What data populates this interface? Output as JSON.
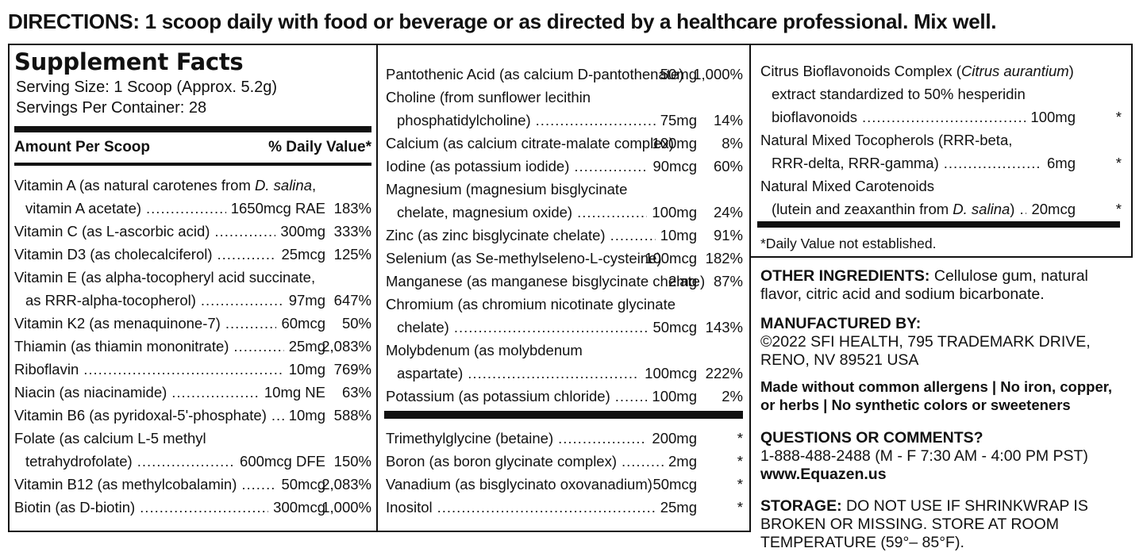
{
  "directions": "DIRECTIONS: 1 scoop daily with food or beverage or as directed by a healthcare professional. Mix well.",
  "facts": {
    "title": "Supplement Facts",
    "serving_size": "Serving Size: 1 Scoop (Approx. 5.2g)",
    "servings_per_container": "Servings Per Container: 28",
    "amount_header": "Amount Per Scoop",
    "dv_header": "% Daily Value*"
  },
  "col1": [
    {
      "name": "Vitamin A (as natural carotenes from D. salina,",
      "amt": "",
      "dv": ""
    },
    {
      "name": "  vitamin A acetate)",
      "amt": "1650mcg RAE",
      "dv": "183%"
    },
    {
      "name": "Vitamin C (as L-ascorbic acid)",
      "amt": "300mg",
      "dv": "333%"
    },
    {
      "name": "Vitamin D3 (as cholecalciferol)",
      "amt": "25mcg",
      "dv": "125%"
    },
    {
      "name": "Vitamin E (as alpha-tocopheryl acid succinate,",
      "amt": "",
      "dv": ""
    },
    {
      "name": "  as RRR-alpha-tocopherol)",
      "amt": "97mg",
      "dv": "647%"
    },
    {
      "name": "Vitamin K2 (as menaquinone-7)",
      "amt": "60mcg",
      "dv": "50%"
    },
    {
      "name": "Thiamin (as thiamin mononitrate)",
      "amt": "25mg",
      "dv": "2,083%"
    },
    {
      "name": "Riboflavin",
      "amt": "10mg",
      "dv": "769%"
    },
    {
      "name": "Niacin (as niacinamide)",
      "amt": "10mg NE",
      "dv": "63%"
    },
    {
      "name": "Vitamin B6 (as pyridoxal-5'-phosphate)",
      "amt": "10mg",
      "dv": "588%"
    },
    {
      "name": "Folate (as calcium L-5 methyl",
      "amt": "",
      "dv": ""
    },
    {
      "name": "  tetrahydrofolate)",
      "amt": "600mcg DFE",
      "dv": "150%"
    },
    {
      "name": "Vitamin B12 (as methylcobalamin)",
      "amt": "50mcg",
      "dv": "2,083%"
    },
    {
      "name": "Biotin (as D-biotin)",
      "amt": "300mcg",
      "dv": "1,000%"
    }
  ],
  "col2": [
    {
      "name": "Pantothenic Acid (as calcium D-pantothenate)",
      "amt": "50mg",
      "dv": "1,000%"
    },
    {
      "name": "Choline (from sunflower lecithin",
      "amt": "",
      "dv": ""
    },
    {
      "name": "  phosphatidylcholine)",
      "amt": "75mg",
      "dv": "14%"
    },
    {
      "name": "Calcium (as calcium citrate-malate complex)",
      "amt": "100mg",
      "dv": "8%"
    },
    {
      "name": "Iodine (as potassium iodide)",
      "amt": "90mcg",
      "dv": "60%"
    },
    {
      "name": "Magnesium (magnesium bisglycinate",
      "amt": "",
      "dv": ""
    },
    {
      "name": "  chelate, magnesium oxide)",
      "amt": "100mg",
      "dv": "24%"
    },
    {
      "name": "Zinc (as zinc bisglycinate chelate)",
      "amt": "10mg",
      "dv": "91%"
    },
    {
      "name": "Selenium (as Se-methylseleno-L-cysteine)",
      "amt": "100mcg",
      "dv": "182%"
    },
    {
      "name": "Manganese (as manganese bisglycinate chelate)",
      "amt": "2mg",
      "dv": "87%"
    },
    {
      "name": "Chromium (as chromium nicotinate glycinate",
      "amt": "",
      "dv": ""
    },
    {
      "name": "  chelate)",
      "amt": "50mcg",
      "dv": "143%"
    },
    {
      "name": "Molybdenum (as molybdenum",
      "amt": "",
      "dv": ""
    },
    {
      "name": "  aspartate)",
      "amt": "100mcg",
      "dv": "222%"
    },
    {
      "name": "Potassium (as potassium chloride)",
      "amt": "100mg",
      "dv": "2%"
    }
  ],
  "col2b": [
    {
      "name": "Trimethylglycine (betaine)",
      "amt": "200mg",
      "dv": "*"
    },
    {
      "name": "Boron (as boron glycinate complex)",
      "amt": "2mg",
      "dv": "*"
    },
    {
      "name": "Vanadium (as bisglycinato oxovanadium)",
      "amt": "50mcg",
      "dv": "*"
    },
    {
      "name": "Inositol",
      "amt": "25mg",
      "dv": "*"
    }
  ],
  "col3": [
    {
      "name": "Citrus Bioflavonoids Complex (Citrus aurantium)",
      "amt": "",
      "dv": ""
    },
    {
      "name": "  extract standardized to 50% hesperidin",
      "amt": "",
      "dv": ""
    },
    {
      "name": "  bioflavonoids",
      "amt": "100mg",
      "dv": "*"
    },
    {
      "name": "Natural Mixed Tocopherols (RRR-beta,",
      "amt": "",
      "dv": ""
    },
    {
      "name": "  RRR-delta, RRR-gamma)",
      "amt": "6mg",
      "dv": "*"
    },
    {
      "name": "Natural Mixed Carotenoids",
      "amt": "",
      "dv": ""
    },
    {
      "name": "  (lutein and zeaxanthin from D. salina)",
      "amt": "20mcg",
      "dv": "*"
    }
  ],
  "dv_note": "*Daily Value not established.",
  "other": {
    "label": "OTHER INGREDIENTS:",
    "text": "Cellulose gum, natural flavor, citric acid and sodium bicarbonate."
  },
  "manufactured": {
    "label": "MANUFACTURED BY:",
    "line1": "©2022 SFI HEALTH, 795 TRADEMARK DRIVE,",
    "line2": "RENO, NV 89521 USA"
  },
  "allergens": {
    "line1": "Made without common allergens | No iron, copper,",
    "line2": "or herbs | No synthetic colors or sweeteners"
  },
  "questions": {
    "label": "QUESTIONS OR COMMENTS?",
    "phone": "1-888-488-2488 (M - F 7:30 AM - 4:00 PM PST)",
    "web": "www.Equazen.us"
  },
  "storage": {
    "label": "STORAGE:",
    "text": "DO NOT USE IF SHRINKWRAP IS BROKEN OR MISSING. STORE AT ROOM TEMPERATURE (59°– 85°F)."
  }
}
